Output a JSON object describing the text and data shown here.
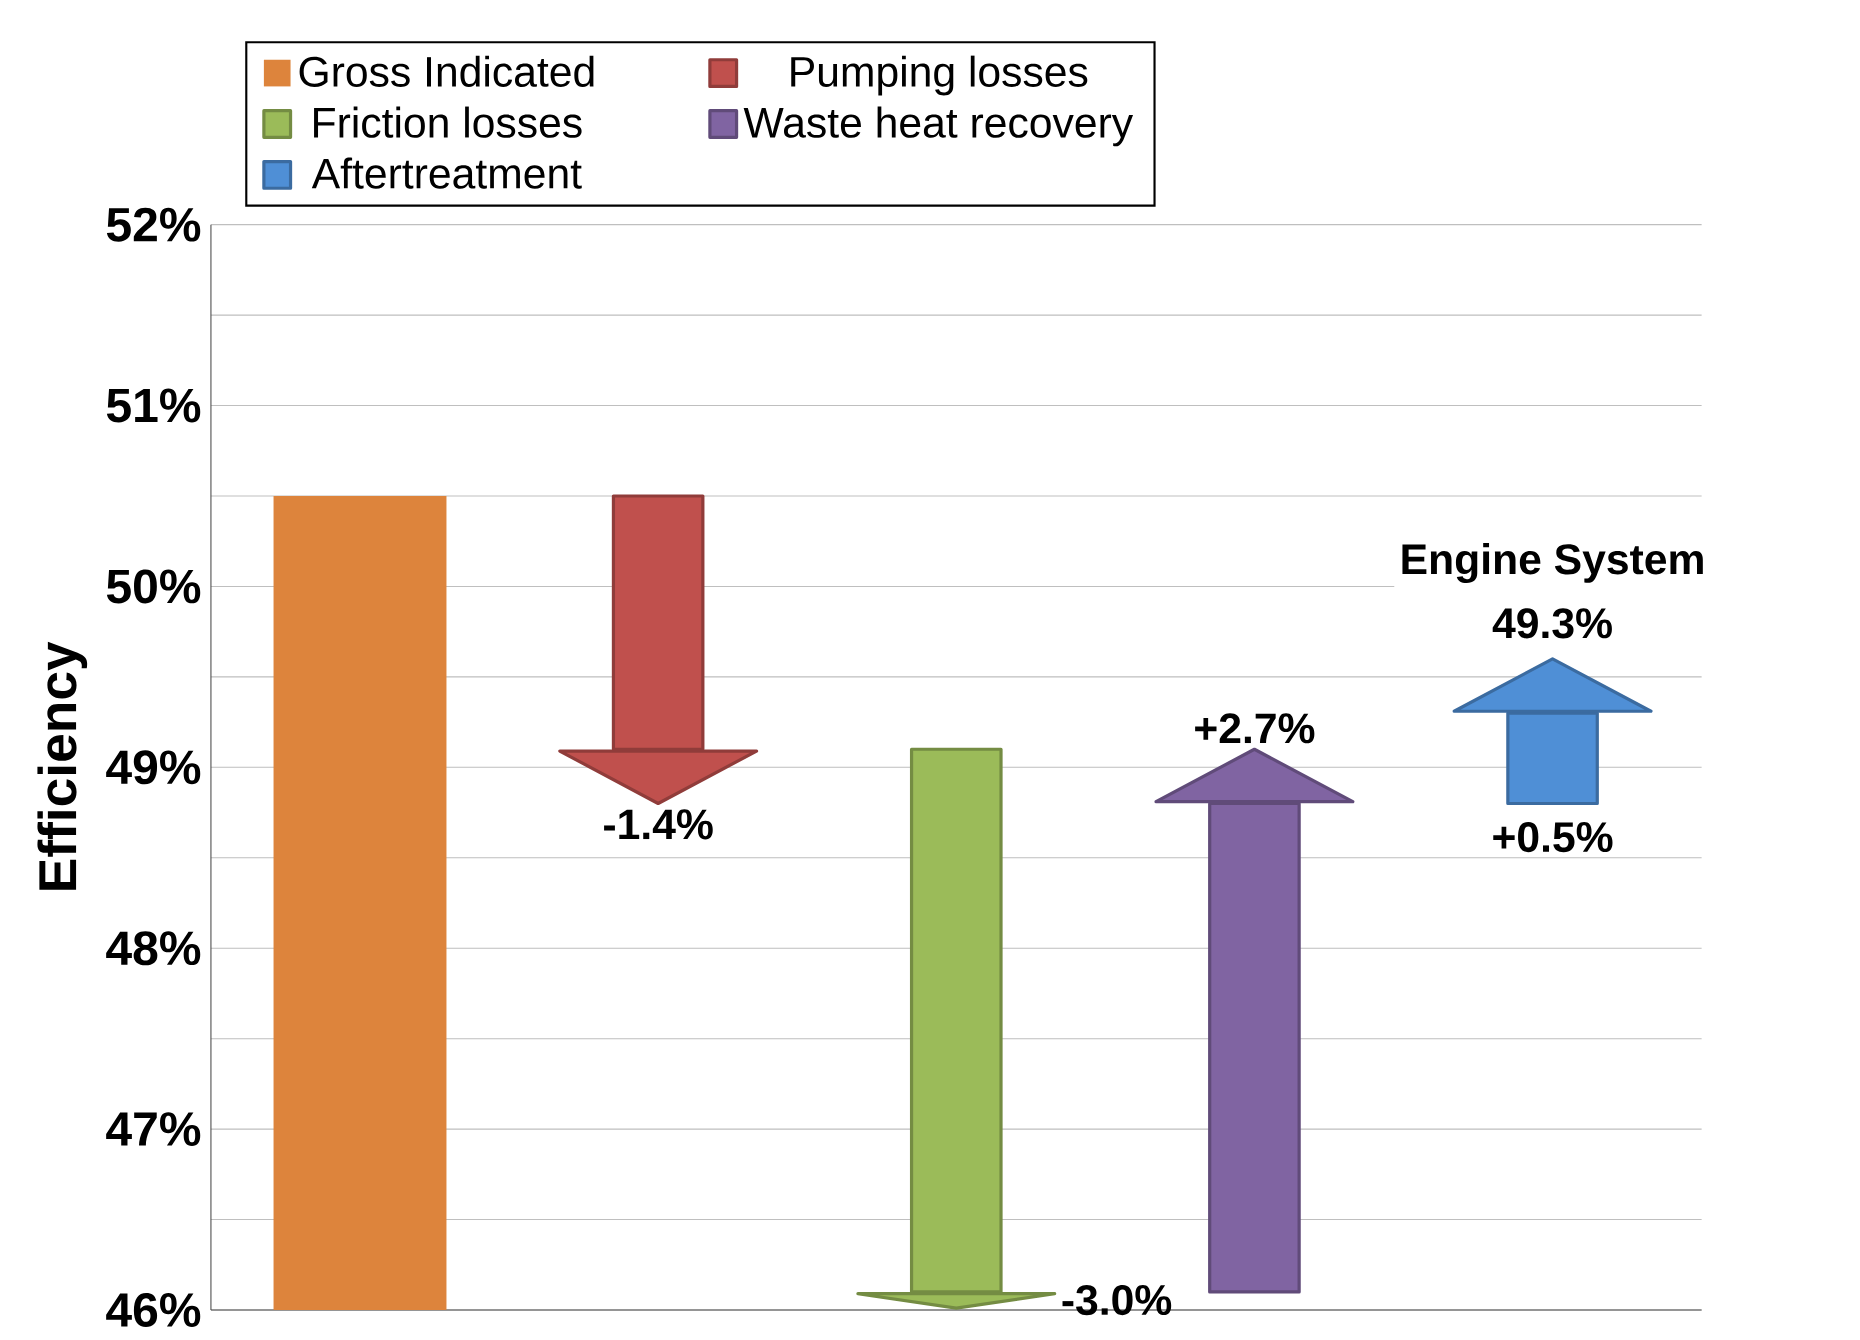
{
  "chart_data": {
    "type": "bar",
    "ylabel": "Efficiency",
    "categories": [
      null,
      null,
      null,
      null,
      null
    ],
    "series": [
      {
        "name": "Gross Indicated",
        "color": "#dd843c",
        "values": [
          50.5,
          null,
          null,
          null,
          null
        ]
      },
      {
        "name": "Pumping losses",
        "color": "#c0504d",
        "values": [
          null,
          -1.4,
          null,
          null,
          null
        ],
        "base": [
          null,
          50.5,
          null,
          null,
          null
        ],
        "value_labels": [
          null,
          "-1.4%",
          null,
          null,
          null
        ]
      },
      {
        "name": "Friction losses",
        "color": "#9bbb59",
        "values": [
          null,
          null,
          -3.0,
          null,
          null
        ],
        "base": [
          null,
          null,
          49.1,
          null,
          null
        ],
        "value_labels": [
          null,
          null,
          "-3.0%",
          null,
          null
        ]
      },
      {
        "name": "Waste heat recovery",
        "color": "#8064a2",
        "values": [
          null,
          null,
          null,
          2.7,
          null
        ],
        "base": [
          null,
          null,
          null,
          46.1,
          null
        ],
        "value_labels": [
          null,
          null,
          null,
          "+2.7%",
          null
        ]
      },
      {
        "name": "Aftertreatment",
        "color": "#4f8fd6",
        "values": [
          null,
          null,
          null,
          null,
          0.5
        ],
        "base": [
          null,
          null,
          null,
          null,
          48.8
        ],
        "value_labels": [
          null,
          null,
          null,
          null,
          "+0.5%"
        ]
      }
    ],
    "annotations": [
      "Engine System",
      "49.3%"
    ],
    "ylim": [
      46,
      52
    ],
    "yticks": [
      {
        "value": 46,
        "label": "46%"
      },
      {
        "value": 46.5,
        "label": null
      },
      {
        "value": 47,
        "label": "47%"
      },
      {
        "value": 47.5,
        "label": null
      },
      {
        "value": 48,
        "label": "48%"
      },
      {
        "value": 48.5,
        "label": null
      },
      {
        "value": 49,
        "label": "49%"
      },
      {
        "value": 49.5,
        "label": null
      },
      {
        "value": 50,
        "label": "50%"
      },
      {
        "value": 50.5,
        "label": null
      },
      {
        "value": 51,
        "label": "51%"
      },
      {
        "value": 51.5,
        "label": null
      },
      {
        "value": 52,
        "label": "52%"
      }
    ],
    "grid": "y",
    "legend": "top"
  }
}
